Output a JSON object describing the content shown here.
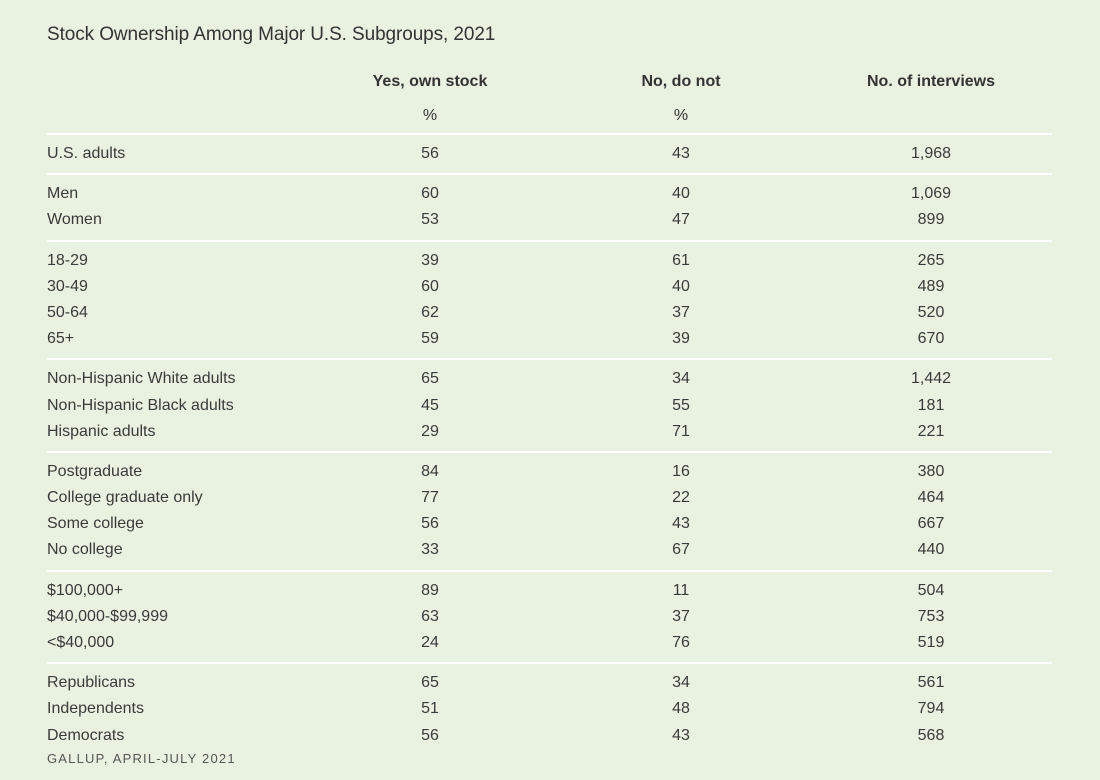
{
  "title": "Stock Ownership Among Major U.S. Subgroups, 2021",
  "columns": [
    {
      "label": "Yes, own stock",
      "unit": "%"
    },
    {
      "label": "No, do not",
      "unit": "%"
    },
    {
      "label": "No. of interviews",
      "unit": ""
    }
  ],
  "source": "GALLUP, APRIL-JULY 2021",
  "chart_data": {
    "type": "table",
    "title": "Stock Ownership Among Major U.S. Subgroups, 2021",
    "columns": [
      "Yes, own stock %",
      "No, do not %",
      "No. of interviews"
    ],
    "groups": [
      [
        {
          "label": "U.S. adults",
          "yes": "56",
          "no": "43",
          "n": "1,968"
        }
      ],
      [
        {
          "label": "Men",
          "yes": "60",
          "no": "40",
          "n": "1,069"
        },
        {
          "label": "Women",
          "yes": "53",
          "no": "47",
          "n": "899"
        }
      ],
      [
        {
          "label": "18-29",
          "yes": "39",
          "no": "61",
          "n": "265"
        },
        {
          "label": "30-49",
          "yes": "60",
          "no": "40",
          "n": "489"
        },
        {
          "label": "50-64",
          "yes": "62",
          "no": "37",
          "n": "520"
        },
        {
          "label": "65+",
          "yes": "59",
          "no": "39",
          "n": "670"
        }
      ],
      [
        {
          "label": "Non-Hispanic White adults",
          "yes": "65",
          "no": "34",
          "n": "1,442"
        },
        {
          "label": "Non-Hispanic Black adults",
          "yes": "45",
          "no": "55",
          "n": "181"
        },
        {
          "label": "Hispanic adults",
          "yes": "29",
          "no": "71",
          "n": "221"
        }
      ],
      [
        {
          "label": "Postgraduate",
          "yes": "84",
          "no": "16",
          "n": "380"
        },
        {
          "label": "College graduate only",
          "yes": "77",
          "no": "22",
          "n": "464"
        },
        {
          "label": "Some college",
          "yes": "56",
          "no": "43",
          "n": "667"
        },
        {
          "label": "No college",
          "yes": "33",
          "no": "67",
          "n": "440"
        }
      ],
      [
        {
          "label": "$100,000+",
          "yes": "89",
          "no": "11",
          "n": "504"
        },
        {
          "label": "$40,000-$99,999",
          "yes": "63",
          "no": "37",
          "n": "753"
        },
        {
          "label": "<$40,000",
          "yes": "24",
          "no": "76",
          "n": "519"
        }
      ],
      [
        {
          "label": "Republicans",
          "yes": "65",
          "no": "34",
          "n": "561"
        },
        {
          "label": "Independents",
          "yes": "51",
          "no": "48",
          "n": "794"
        },
        {
          "label": "Democrats",
          "yes": "56",
          "no": "43",
          "n": "568"
        }
      ]
    ]
  }
}
